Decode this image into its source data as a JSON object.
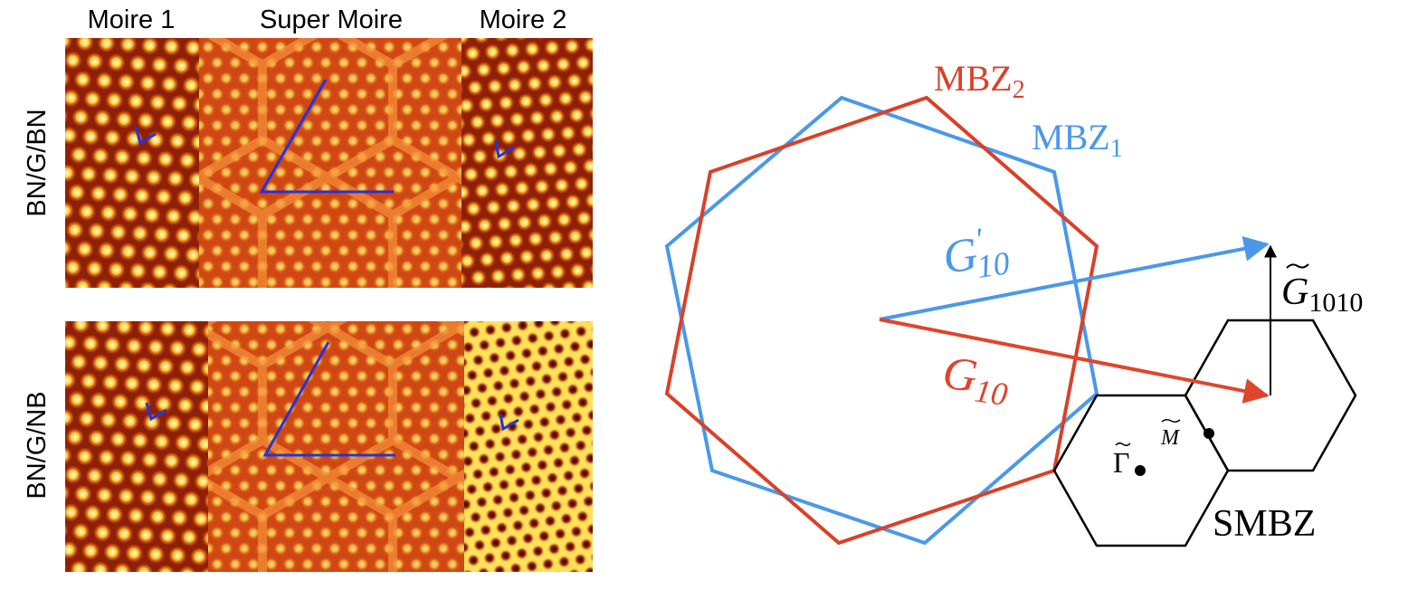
{
  "panels": {
    "columns": [
      "Moire 1",
      "Super Moire",
      "Moire 2"
    ],
    "rows": [
      "BN/G/BN",
      "BN/G/NB"
    ]
  },
  "diagram": {
    "mbz2": {
      "text": "MBZ",
      "sub": "2"
    },
    "mbz1": {
      "text": "MBZ",
      "sub": "1"
    },
    "g10prime": {
      "text": "G",
      "sup": "′",
      "sub": "10"
    },
    "g10": {
      "text": "G",
      "sub": "10"
    },
    "g1010": {
      "text": "G",
      "sub": "1010"
    },
    "gamma": "Γ",
    "m": "M",
    "smbz": "SMBZ"
  }
}
